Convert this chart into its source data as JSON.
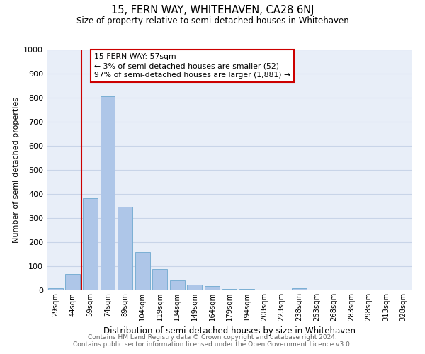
{
  "title": "15, FERN WAY, WHITEHAVEN, CA28 6NJ",
  "subtitle": "Size of property relative to semi-detached houses in Whitehaven",
  "xlabel": "Distribution of semi-detached houses by size in Whitehaven",
  "ylabel": "Number of semi-detached properties",
  "bar_labels": [
    "29sqm",
    "44sqm",
    "59sqm",
    "74sqm",
    "89sqm",
    "104sqm",
    "119sqm",
    "134sqm",
    "149sqm",
    "164sqm",
    "179sqm",
    "194sqm",
    "208sqm",
    "223sqm",
    "238sqm",
    "253sqm",
    "268sqm",
    "283sqm",
    "298sqm",
    "313sqm",
    "328sqm"
  ],
  "bar_values": [
    8,
    68,
    383,
    805,
    348,
    160,
    88,
    42,
    25,
    18,
    7,
    5,
    0,
    0,
    8,
    0,
    0,
    0,
    0,
    0,
    0
  ],
  "bar_color": "#aec6e8",
  "bar_edgecolor": "#7bafd4",
  "ylim": [
    0,
    1000
  ],
  "yticks": [
    0,
    100,
    200,
    300,
    400,
    500,
    600,
    700,
    800,
    900,
    1000
  ],
  "annotation_title": "15 FERN WAY: 57sqm",
  "annotation_line1": "← 3% of semi-detached houses are smaller (52)",
  "annotation_line2": "97% of semi-detached houses are larger (1,881) →",
  "annotation_box_color": "#ffffff",
  "annotation_box_edgecolor": "#cc0000",
  "vline_color": "#cc0000",
  "vline_pos": 1.5,
  "footer1": "Contains HM Land Registry data © Crown copyright and database right 2024.",
  "footer2": "Contains public sector information licensed under the Open Government Licence v3.0.",
  "background_color": "#ffffff",
  "plot_bg_color": "#e8eef8",
  "grid_color": "#c8d4e8"
}
